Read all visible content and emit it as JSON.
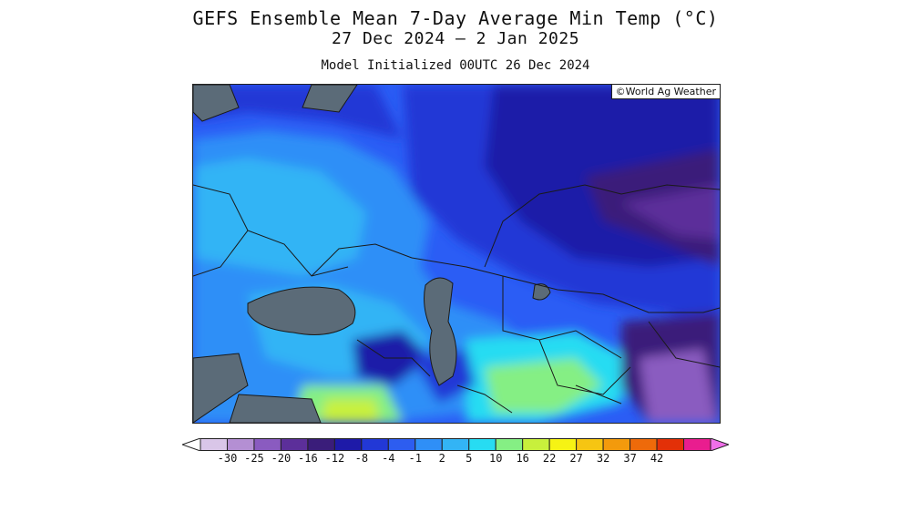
{
  "header": {
    "title": "GEFS Ensemble Mean 7-Day Average Min Temp (°C)",
    "date_range": "27 Dec 2024 – 2 Jan 2025",
    "initialized": "Model Initialized 00UTC 26 Dec 2024"
  },
  "map": {
    "credit": "©World Ag Weather",
    "water_color": "#5b6b78",
    "border_color": "#1a1a1a"
  },
  "legend": {
    "ticks": [
      "-30",
      "-25",
      "-20",
      "-16",
      "-12",
      "-8",
      "-4",
      "-1",
      "2",
      "5",
      "10",
      "16",
      "22",
      "27",
      "32",
      "37",
      "42"
    ],
    "colors": [
      "#ffffff",
      "#d9c6e8",
      "#b48fd3",
      "#8a5bc0",
      "#5c2f9a",
      "#3a1d7a",
      "#1e1aa8",
      "#2238d6",
      "#2d5df0",
      "#2f8ff7",
      "#33b4f5",
      "#27dcf2",
      "#85ef84",
      "#c8f03c",
      "#f6f314",
      "#f6c512",
      "#f39a0c",
      "#ee6a0a",
      "#e33008",
      "#e91d8f",
      "#f06fe9"
    ]
  }
}
